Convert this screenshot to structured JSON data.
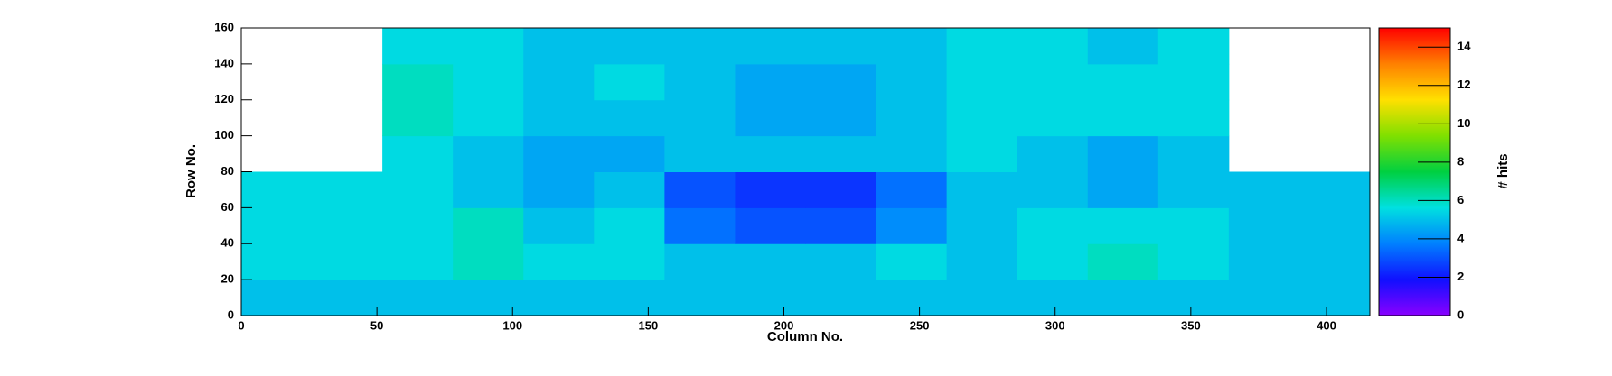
{
  "chart_data": {
    "type": "heatmap",
    "xlabel": "Column No.",
    "ylabel": "Row No.",
    "zlabel": "# hits",
    "xbins": [
      0,
      26,
      52,
      78,
      104,
      130,
      156,
      182,
      208,
      234,
      260,
      286,
      312,
      338,
      364,
      390,
      416
    ],
    "ybins": [
      0,
      20,
      40,
      60,
      80,
      100,
      120,
      140,
      160
    ],
    "values": [
      [
        5,
        5,
        5,
        5,
        5,
        5,
        5,
        5,
        5,
        5,
        5,
        5,
        5,
        5,
        5,
        5
      ],
      [
        5.5,
        5.5,
        5.5,
        6,
        5.5,
        5.5,
        5,
        5,
        5,
        5.5,
        5,
        5.5,
        6,
        5.5,
        5,
        5
      ],
      [
        5.5,
        5.5,
        5.5,
        6,
        5,
        5.5,
        3.5,
        3,
        3,
        4,
        5,
        5.5,
        5.5,
        5.5,
        5,
        5
      ],
      [
        5.5,
        5.5,
        5.5,
        5,
        4.5,
        5,
        3,
        2.5,
        2.5,
        3.5,
        5,
        5,
        4.5,
        5,
        5,
        5
      ],
      [
        null,
        null,
        5.5,
        5,
        4.5,
        4.5,
        5,
        5,
        5,
        5,
        5.5,
        5,
        4.5,
        5,
        null,
        null
      ],
      [
        null,
        null,
        6,
        5.5,
        5,
        5,
        5,
        4.5,
        4.5,
        5,
        5.5,
        5.5,
        5.5,
        5.5,
        null,
        null
      ],
      [
        null,
        null,
        6,
        5.5,
        5,
        5.5,
        5,
        4.5,
        4.5,
        5,
        5.5,
        5.5,
        5.5,
        5.5,
        null,
        null
      ],
      [
        null,
        null,
        5.5,
        5.5,
        5,
        5,
        5,
        5,
        5,
        5,
        5.5,
        5.5,
        5,
        5.5,
        null,
        null
      ]
    ],
    "xlim": [
      0,
      416
    ],
    "xticks": [
      0,
      50,
      100,
      150,
      200,
      250,
      300,
      350,
      400
    ],
    "ylim": [
      0,
      160
    ],
    "yticks": [
      0,
      20,
      40,
      60,
      80,
      100,
      120,
      140,
      160
    ],
    "zlim": [
      0,
      15
    ],
    "zticks": [
      0,
      2,
      4,
      6,
      8,
      10,
      12,
      14
    ],
    "colorscale": [
      "#8a00ff",
      "#1010ff",
      "#0080ff",
      "#00e0e0",
      "#00d040",
      "#80e000",
      "#ffe000",
      "#ff8000",
      "#ff0000"
    ]
  }
}
